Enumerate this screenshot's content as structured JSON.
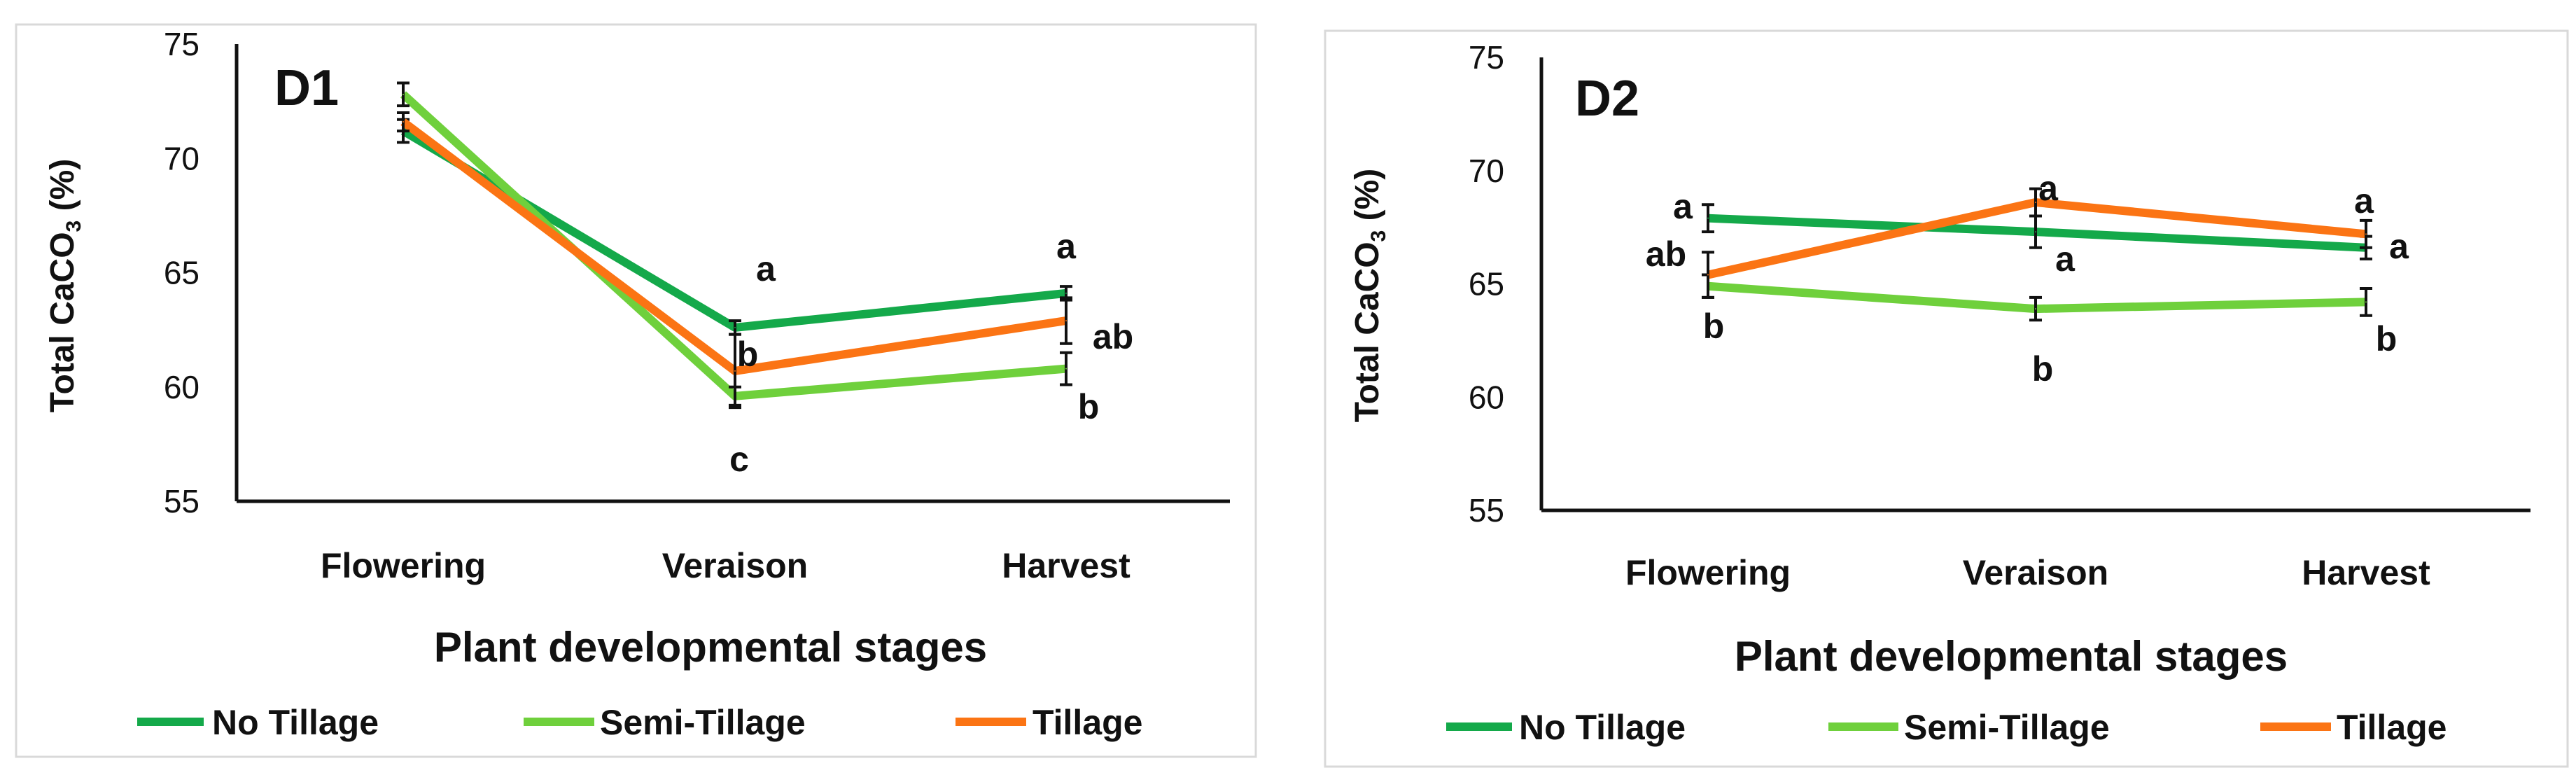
{
  "colors": {
    "No Tillage": "#14a94a",
    "Semi-Tillage": "#6fd03c",
    "Tillage": "#fb7414"
  },
  "chart_data": [
    {
      "type": "line",
      "title": "D1",
      "xlabel": "Plant developmental stages",
      "ylabel": "Total CaCO",
      "ylabel_sub": "3",
      "ylabel_suffix": " (%)",
      "ylim": [
        55,
        75
      ],
      "yticks": [
        "55",
        "60",
        "65",
        "70",
        "75"
      ],
      "categories": [
        "Flowering",
        "Veraison",
        "Harvest"
      ],
      "legend": "bottom",
      "series": [
        {
          "name": "No Tillage",
          "values": [
            71.2,
            62.6,
            64.1
          ],
          "errors": [
            0.5,
            0.3,
            0.3
          ]
        },
        {
          "name": "Semi-Tillage",
          "values": [
            72.8,
            59.6,
            60.8
          ],
          "errors": [
            0.5,
            0.4,
            0.7
          ]
        },
        {
          "name": "Tillage",
          "values": [
            71.6,
            60.7,
            62.9
          ],
          "errors": [
            0.4,
            1.6,
            1.0
          ]
        }
      ],
      "annotations": [
        {
          "stage": "Veraison",
          "text": "a"
        },
        {
          "stage": "Veraison",
          "text": "b"
        },
        {
          "stage": "Veraison",
          "text": "c"
        },
        {
          "stage": "Harvest",
          "text": "a"
        },
        {
          "stage": "Harvest",
          "text": "ab"
        },
        {
          "stage": "Harvest",
          "text": "b"
        }
      ]
    },
    {
      "type": "line",
      "title": "D2",
      "xlabel": "Plant developmental stages",
      "ylabel": "Total CaCO",
      "ylabel_sub": "3",
      "ylabel_suffix": " (%)",
      "ylim": [
        55,
        75
      ],
      "yticks": [
        "55",
        "60",
        "65",
        "70",
        "75"
      ],
      "categories": [
        "Flowering",
        "Veraison",
        "Harvest"
      ],
      "legend": "bottom",
      "series": [
        {
          "name": "No Tillage",
          "values": [
            67.9,
            67.3,
            66.6
          ],
          "errors": [
            0.6,
            0.7,
            0.5
          ]
        },
        {
          "name": "Semi-Tillage",
          "values": [
            64.9,
            63.9,
            64.2
          ],
          "errors": [
            0.5,
            0.5,
            0.6
          ]
        },
        {
          "name": "Tillage",
          "values": [
            65.4,
            68.6,
            67.2
          ],
          "errors": [
            1.0,
            0.6,
            0.6
          ]
        }
      ],
      "annotations": [
        {
          "stage": "Flowering",
          "text": "a"
        },
        {
          "stage": "Flowering",
          "text": "ab"
        },
        {
          "stage": "Flowering",
          "text": "b"
        },
        {
          "stage": "Veraison",
          "text": "a"
        },
        {
          "stage": "Veraison",
          "text": "a"
        },
        {
          "stage": "Veraison",
          "text": "b"
        },
        {
          "stage": "Harvest",
          "text": "a"
        },
        {
          "stage": "Harvest",
          "text": "a"
        },
        {
          "stage": "Harvest",
          "text": "b"
        }
      ]
    }
  ]
}
